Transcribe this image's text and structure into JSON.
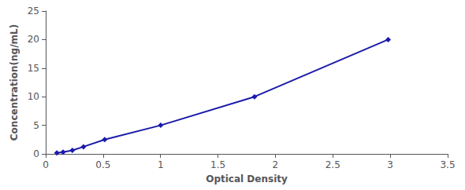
{
  "chart_data": {
    "type": "line",
    "x": [
      0.097,
      0.151,
      0.232,
      0.329,
      0.514,
      1.001,
      1.818,
      2.982
    ],
    "values": [
      0.156,
      0.312,
      0.625,
      1.25,
      2.5,
      5.0,
      10.0,
      20.0
    ],
    "color": "#1a1aaa",
    "marker": "diamond",
    "xlabel": "Optical Density",
    "ylabel": "Concentration(ng/mL)",
    "xlim": [
      0,
      3.5
    ],
    "ylim": [
      0,
      25
    ],
    "xticks": [
      0,
      0.5,
      1.0,
      1.5,
      2.0,
      2.5,
      3.0,
      3.5
    ],
    "yticks": [
      0,
      5,
      10,
      15,
      20,
      25
    ],
    "grid": false
  }
}
